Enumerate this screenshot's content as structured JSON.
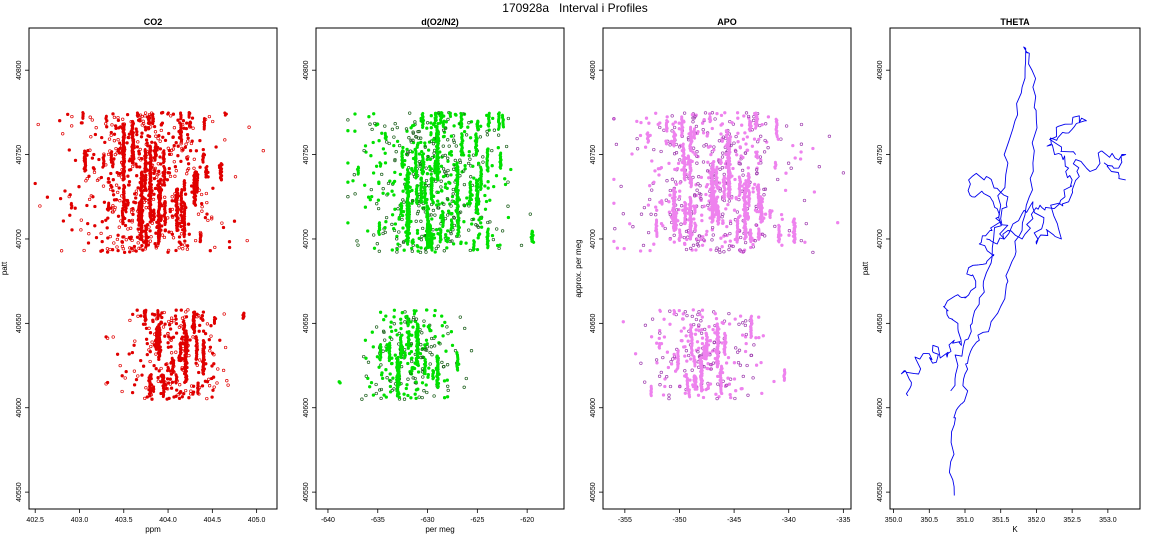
{
  "page_title": "170928a   Interval i Profiles",
  "chart_data": [
    {
      "type": "scatter",
      "title": "CO2",
      "xlabel": "ppm",
      "ylabel": "patt",
      "xlim": [
        402.43,
        405.23
      ],
      "ylim": [
        40540,
        40825
      ],
      "xticks": [
        402.5,
        403.0,
        403.5,
        404.0,
        404.5,
        405.0
      ],
      "xtick_labels": [
        "402.5",
        "403.0",
        "403.5",
        "404.0",
        "404.5",
        "405.0"
      ],
      "yticks": [
        40550,
        40600,
        40650,
        40700,
        40750,
        40800
      ],
      "ytick_labels": [
        "40550",
        "40600",
        "40650",
        "40700",
        "40750",
        "40800"
      ],
      "marker": "circle",
      "color": "#e00000",
      "clusters": [
        {
          "xmin": 402.5,
          "xmax": 405.15,
          "ymin": 40692,
          "ymax": 40775,
          "xcenter": 403.75,
          "xspread": 0.42,
          "n": 560
        },
        {
          "xmin": 403.3,
          "xmax": 405.1,
          "ymin": 40605,
          "ymax": 40658,
          "xcenter": 404.05,
          "xspread": 0.28,
          "n": 240
        }
      ],
      "strands": [
        {
          "x": 403.5,
          "y0": 40735,
          "y1": 40768
        },
        {
          "x": 403.6,
          "y0": 40745,
          "y1": 40770
        },
        {
          "x": 403.7,
          "y0": 40700,
          "y1": 40740
        },
        {
          "x": 403.8,
          "y0": 40710,
          "y1": 40755
        },
        {
          "x": 403.9,
          "y0": 40700,
          "y1": 40735
        },
        {
          "x": 404.1,
          "y0": 40705,
          "y1": 40730
        },
        {
          "x": 404.3,
          "y0": 40720,
          "y1": 40740
        },
        {
          "x": 404.6,
          "y0": 40735,
          "y1": 40745
        },
        {
          "x": 403.9,
          "y0": 40630,
          "y1": 40650
        },
        {
          "x": 404.2,
          "y0": 40615,
          "y1": 40635
        },
        {
          "x": 404.4,
          "y0": 40620,
          "y1": 40640
        },
        {
          "x": 403.8,
          "y0": 40607,
          "y1": 40620
        },
        {
          "x": 404.85,
          "y0": 40653,
          "y1": 40656
        }
      ]
    },
    {
      "type": "scatter",
      "title": "d(O2/N2)",
      "xlabel": "per meg",
      "ylabel": "",
      "xlim": [
        -641.2,
        -616.3
      ],
      "ylim": [
        40540,
        40825
      ],
      "xticks": [
        -640,
        -635,
        -630,
        -625,
        -620
      ],
      "xtick_labels": [
        "-640",
        "-635",
        "-630",
        "-625",
        "-620"
      ],
      "yticks": [
        40550,
        40600,
        40650,
        40700,
        40750,
        40800
      ],
      "ytick_labels": [
        "40550",
        "40600",
        "40650",
        "40700",
        "40750",
        "40800"
      ],
      "marker": "circle",
      "color": "#00e000",
      "edge_color": "#1a5e1a",
      "clusters": [
        {
          "xmin": -638,
          "xmax": -617,
          "ymin": 40692,
          "ymax": 40775,
          "xcenter": -629.5,
          "xspread": 3.6,
          "n": 560
        },
        {
          "xmin": -640.5,
          "xmax": -625,
          "ymin": 40605,
          "ymax": 40658,
          "xcenter": -631.5,
          "xspread": 2.4,
          "n": 230
        }
      ],
      "strands": [
        {
          "x": -632,
          "y0": 40700,
          "y1": 40740
        },
        {
          "x": -629,
          "y0": 40735,
          "y1": 40765
        },
        {
          "x": -627,
          "y0": 40715,
          "y1": 40745
        },
        {
          "x": -625,
          "y0": 40715,
          "y1": 40735
        },
        {
          "x": -630,
          "y0": 40695,
          "y1": 40720
        },
        {
          "x": -619.5,
          "y0": 40698,
          "y1": 40705
        },
        {
          "x": -631,
          "y0": 40625,
          "y1": 40650
        },
        {
          "x": -633,
          "y0": 40607,
          "y1": 40630
        },
        {
          "x": -629,
          "y0": 40612,
          "y1": 40630
        },
        {
          "x": -625,
          "y0": 40765,
          "y1": 40770
        }
      ]
    },
    {
      "type": "scatter",
      "title": "APO",
      "xlabel": "",
      "ylabel": "approx. per meg",
      "xlim": [
        -357,
        -334.3
      ],
      "ylim": [
        40540,
        40825
      ],
      "xticks": [
        -355,
        -350,
        -345,
        -340,
        -335
      ],
      "xtick_labels": [
        "-355",
        "-350",
        "-345",
        "-340",
        "-335"
      ],
      "yticks": [
        40550,
        40600,
        40650,
        40700,
        40750,
        40800
      ],
      "ytick_labels": [
        "40550",
        "40600",
        "40650",
        "40700",
        "40750",
        "40800"
      ],
      "marker": "circle",
      "color": "#ee82ee",
      "edge_color": "#a040b0",
      "clusters": [
        {
          "xmin": -356,
          "xmax": -335,
          "ymin": 40692,
          "ymax": 40775,
          "xcenter": -347,
          "xspread": 3.6,
          "n": 540
        },
        {
          "xmin": -355.5,
          "xmax": -336,
          "ymin": 40605,
          "ymax": 40658,
          "xcenter": -347.5,
          "xspread": 2.6,
          "n": 230
        }
      ],
      "strands": [
        {
          "x": -347,
          "y0": 40710,
          "y1": 40745
        },
        {
          "x": -345.5,
          "y0": 40725,
          "y1": 40760
        },
        {
          "x": -344,
          "y0": 40700,
          "y1": 40730
        },
        {
          "x": -349,
          "y0": 40700,
          "y1": 40725
        },
        {
          "x": -350.5,
          "y0": 40705,
          "y1": 40730
        },
        {
          "x": -342.5,
          "y0": 40710,
          "y1": 40725
        },
        {
          "x": -339.5,
          "y0": 40698,
          "y1": 40712
        },
        {
          "x": -346.5,
          "y0": 40625,
          "y1": 40650
        },
        {
          "x": -348,
          "y0": 40610,
          "y1": 40630
        },
        {
          "x": -343.5,
          "y0": 40765,
          "y1": 40770
        }
      ]
    },
    {
      "type": "line",
      "title": "THETA",
      "xlabel": "K",
      "ylabel": "patt",
      "xlim": [
        349.95,
        353.45
      ],
      "ylim": [
        40540,
        40825
      ],
      "xticks": [
        350.0,
        350.5,
        351.0,
        351.5,
        352.0,
        352.5,
        353.0
      ],
      "xtick_labels": [
        "350.0",
        "350.5",
        "351.0",
        "351.5",
        "352.0",
        "352.5",
        "353.0"
      ],
      "yticks": [
        40550,
        40600,
        40650,
        40700,
        40750,
        40800
      ],
      "ytick_labels": [
        "40550",
        "40600",
        "40650",
        "40700",
        "40750",
        "40800"
      ],
      "color": "#0000ee",
      "series": [
        {
          "x": [
            350.85,
            350.8,
            350.85,
            350.9,
            351.0,
            351.0,
            351.05,
            351.2,
            351.35,
            351.5,
            351.6,
            351.7,
            351.8,
            351.9,
            351.95,
            352.0,
            351.95,
            351.9,
            351.85,
            351.8,
            351.7,
            351.6,
            351.5,
            351.4,
            351.3,
            351.2,
            351.1,
            351.0,
            350.9,
            350.8
          ],
          "y": [
            40548,
            40568,
            40590,
            40600,
            40605,
            40620,
            40630,
            40640,
            40648,
            40660,
            40675,
            40690,
            40705,
            40725,
            40745,
            40770,
            40790,
            40810,
            40813,
            40790,
            40770,
            40745,
            40720,
            40700,
            40680,
            40665,
            40650,
            40640,
            40625,
            40610
          ]
        },
        {
          "x": [
            350.2,
            350.25,
            350.15,
            350.35,
            350.3,
            350.5,
            350.6,
            350.55,
            350.75,
            350.85,
            350.95,
            350.9,
            350.75,
            350.7,
            350.9,
            351.0,
            351.15,
            351.05,
            351.25,
            351.4,
            351.2,
            351.35,
            351.5,
            351.45,
            351.35,
            351.1,
            351.05,
            351.3,
            351.45,
            351.6,
            351.5,
            351.55,
            351.8,
            351.95,
            352.1,
            352.0,
            352.15,
            352.35,
            352.2,
            352.45,
            352.6,
            352.55,
            352.75,
            352.9,
            353.1,
            353.25,
            353.15,
            352.95,
            353.05,
            353.25
          ],
          "y": [
            40607,
            40615,
            40622,
            40620,
            40630,
            40632,
            40627,
            40637,
            40630,
            40640,
            40637,
            40650,
            40655,
            40660,
            40667,
            40665,
            40675,
            40683,
            40685,
            40690,
            40697,
            40705,
            40710,
            40718,
            40725,
            40725,
            40735,
            40737,
            40730,
            40725,
            40712,
            40700,
            40715,
            40722,
            40710,
            40697,
            40705,
            40700,
            40720,
            40722,
            40737,
            40747,
            40740,
            40752,
            40748,
            40750,
            40742,
            40745,
            40740,
            40735
          ]
        },
        {
          "x": [
            351.3,
            351.45,
            351.6,
            351.8,
            351.95,
            352.05,
            352.25,
            352.4,
            352.5,
            352.45,
            352.35,
            352.15,
            352.3,
            352.5,
            352.7,
            352.6,
            352.4,
            352.25,
            352.35,
            352.55
          ],
          "y": [
            40700,
            40697,
            40705,
            40700,
            40712,
            40720,
            40718,
            40725,
            40735,
            40742,
            40750,
            40755,
            40760,
            40765,
            40770,
            40773,
            40768,
            40760,
            40752,
            40750
          ]
        }
      ]
    }
  ]
}
